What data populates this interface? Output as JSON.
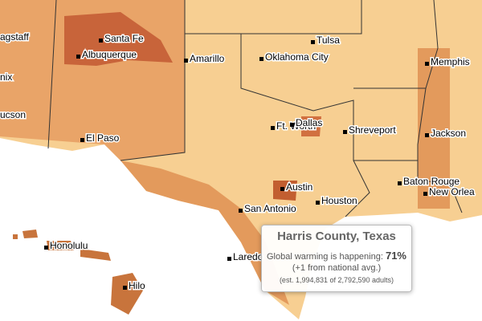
{
  "map": {
    "cities": [
      "agstaff",
      "Santa Fe",
      "Albuquerque",
      "nix",
      "ucson",
      "Amarillo",
      "Tulsa",
      "Oklahoma City",
      "Memphis",
      "Ft. Worth",
      "Dallas",
      "Shreveport",
      "Jackson",
      "El Paso",
      "Baton Rouge",
      "New Orlea",
      "Austin",
      "San Antonio",
      "Houston",
      "Honolulu",
      "Laredo",
      "Hilo"
    ]
  },
  "tooltip": {
    "title": "Harris County, Texas",
    "label": "Global warming is happening:",
    "value": "71%",
    "difference": "(+1 from national avg.)",
    "estimate": "(est. 1,994,831 of 2,792,590 adults)"
  }
}
